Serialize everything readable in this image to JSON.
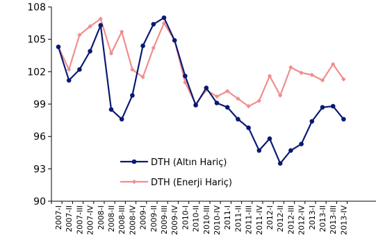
{
  "chart_data": {
    "type": "line",
    "categories": [
      "2007-I",
      "2007-II",
      "2007-III",
      "2007-IV",
      "2008-I",
      "2008-II",
      "2008-III",
      "2008-IV",
      "2009-I",
      "2009-II",
      "2009-III",
      "2009-IV",
      "2010-I",
      "2010-II",
      "2010-III",
      "2010-IV",
      "2011-I",
      "2011-II",
      "2011-III",
      "2011-IV",
      "2012-I",
      "2012-II",
      "2012-III",
      "2012-IV",
      "2013-I",
      "2013-II",
      "2013-III",
      "2013-IV"
    ],
    "ylim": [
      90,
      108
    ],
    "yticks": [
      90,
      93,
      96,
      99,
      102,
      105,
      108
    ],
    "grid": false,
    "legend_position": "bottom-center",
    "series": [
      {
        "name": "DTH (Altın Hariç)",
        "color": "#0a1a72",
        "marker": "circle",
        "values": [
          104.3,
          101.2,
          102.2,
          103.9,
          106.3,
          98.5,
          97.6,
          99.8,
          104.4,
          106.4,
          107.0,
          104.9,
          101.6,
          98.9,
          100.5,
          99.1,
          98.7,
          97.6,
          96.8,
          94.7,
          95.8,
          93.5,
          94.7,
          95.3,
          97.4,
          98.7,
          98.8,
          97.6
        ]
      },
      {
        "name": "DTH (Enerji Hariç)",
        "color": "#f08d8d",
        "marker": "diamond",
        "values": [
          104.3,
          102.2,
          105.4,
          106.2,
          106.9,
          103.7,
          105.7,
          102.2,
          101.5,
          104.2,
          106.5,
          104.9,
          101.0,
          99.0,
          100.3,
          99.7,
          100.2,
          99.5,
          98.8,
          99.3,
          101.6,
          99.8,
          102.4,
          101.9,
          101.7,
          101.2,
          102.7,
          101.3
        ]
      }
    ]
  }
}
